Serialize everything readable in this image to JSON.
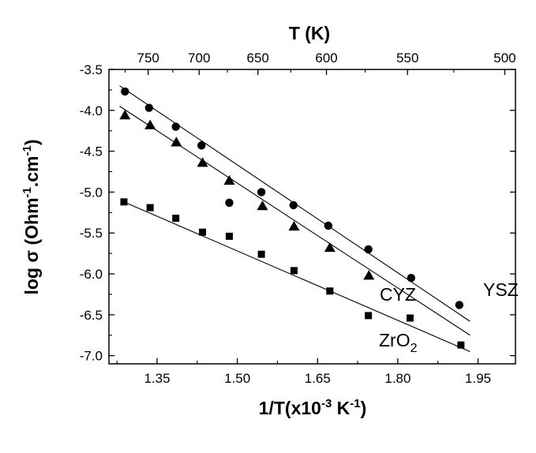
{
  "chart_data": {
    "type": "scatter",
    "xlabel": {
      "main": "1/T(x10",
      "sup1": "-3",
      "mid": " K",
      "sup2": "-1",
      "end": ")"
    },
    "ylabel": {
      "main": "log σ (Ohm",
      "sup1": "-1",
      "mid": ".cm",
      "sup2": "-1",
      "end": ")"
    },
    "top_axis_title": "T (K)",
    "xlim": [
      1.26,
      2.02
    ],
    "ylim": [
      -7.1,
      -3.5
    ],
    "x_ticks": [
      1.35,
      1.5,
      1.65,
      1.8,
      1.95
    ],
    "x_tick_labels": [
      "1.35",
      "1.50",
      "1.65",
      "1.80",
      "1.95"
    ],
    "y_ticks": [
      -3.5,
      -4.0,
      -4.5,
      -5.0,
      -5.5,
      -6.0,
      -6.5,
      -7.0
    ],
    "y_tick_labels": [
      "-3.5",
      "-4.0",
      "-4.5",
      "-5.0",
      "-5.5",
      "-6.0",
      "-6.5",
      "-7.0"
    ],
    "top_ticks": [
      750,
      700,
      650,
      600,
      550,
      500
    ],
    "top_tick_labels": [
      "750",
      "700",
      "650",
      "600",
      "550",
      "500"
    ],
    "grid": false,
    "series": [
      {
        "name": "YSZ",
        "label_parts": {
          "main": "YSZ",
          "sub": ""
        },
        "marker": "circle",
        "x": [
          1.29,
          1.335,
          1.385,
          1.433,
          1.485,
          1.545,
          1.605,
          1.67,
          1.745,
          1.825,
          1.915
        ],
        "y": [
          -3.77,
          -3.97,
          -4.2,
          -4.43,
          -5.13,
          -5.0,
          -5.16,
          -5.41,
          -5.7,
          -6.05,
          -6.38
        ],
        "fit": {
          "x": [
            1.28,
            1.935
          ],
          "y": [
            -3.7,
            -6.58
          ]
        }
      },
      {
        "name": "CYZ",
        "label_parts": {
          "main": "CYZ",
          "sub": ""
        },
        "marker": "triangle",
        "x": [
          1.29,
          1.337,
          1.386,
          1.435,
          1.485,
          1.547,
          1.606,
          1.673,
          1.746
        ],
        "y": [
          -4.06,
          -4.18,
          -4.39,
          -4.64,
          -4.86,
          -5.17,
          -5.42,
          -5.68,
          -6.02
        ],
        "fit": {
          "x": [
            1.28,
            1.935
          ],
          "y": [
            -3.95,
            -6.75
          ]
        }
      },
      {
        "name": "ZrO2",
        "label_parts": {
          "main": "ZrO",
          "sub": "2"
        },
        "marker": "square",
        "x": [
          1.288,
          1.337,
          1.385,
          1.435,
          1.485,
          1.545,
          1.606,
          1.673,
          1.745,
          1.823,
          1.918
        ],
        "y": [
          -5.12,
          -5.19,
          -5.32,
          -5.49,
          -5.54,
          -5.76,
          -5.96,
          -6.21,
          -6.51,
          -6.54,
          -6.87
        ],
        "fit": {
          "x": [
            1.288,
            1.935
          ],
          "y": [
            -5.12,
            -6.95
          ]
        }
      }
    ]
  }
}
